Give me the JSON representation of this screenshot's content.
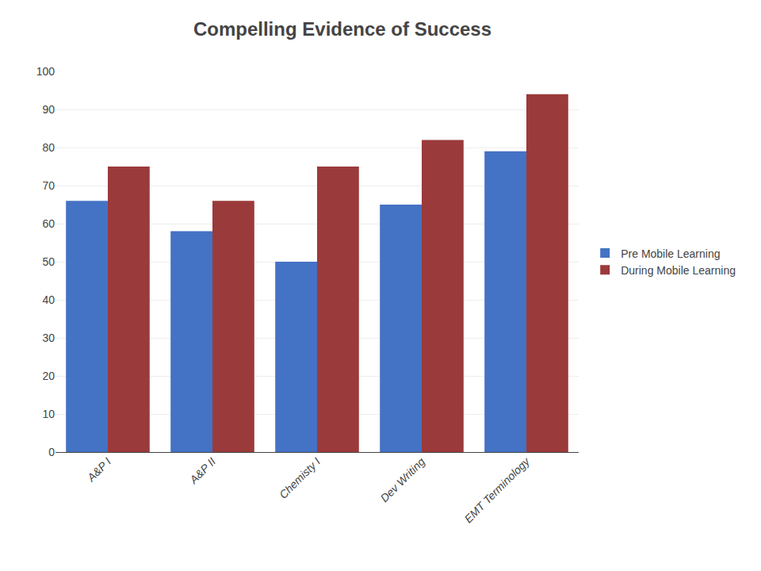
{
  "chart_data": {
    "type": "bar",
    "title": "Compelling Evidence of Success",
    "categories": [
      "A&P I",
      "A&P II",
      "Chemisty I",
      "Dev Writing",
      "EMT Terminology"
    ],
    "series": [
      {
        "name": "Pre Mobile Learning",
        "color": "#4472C4",
        "values": [
          66,
          58,
          50,
          65,
          79
        ]
      },
      {
        "name": "During Mobile Learning",
        "color": "#9B3A3A",
        "values": [
          75,
          66,
          75,
          82,
          94
        ]
      }
    ],
    "ylim": [
      0,
      100
    ],
    "yticks": [
      0,
      10,
      20,
      30,
      40,
      50,
      60,
      70,
      80,
      90,
      100
    ],
    "grid": true,
    "legend": "right"
  }
}
